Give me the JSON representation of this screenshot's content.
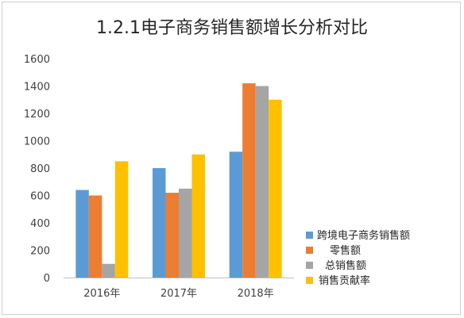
{
  "chart_data": {
    "type": "bar",
    "title": "1.2.1电子商务销售额增长分析对比",
    "xlabel": "",
    "ylabel": "",
    "categories": [
      "2016年",
      "2017年",
      "2018年"
    ],
    "ylim": [
      0,
      1600
    ],
    "yticks": [
      0,
      200,
      400,
      600,
      800,
      1000,
      1200,
      1400,
      1600
    ],
    "grid": false,
    "legend_position": "right",
    "series": [
      {
        "name": "跨境电子商务销售额",
        "color": "#5B9BD5",
        "values": [
          640,
          800,
          920
        ]
      },
      {
        "name": "零售额",
        "color": "#ED7D31",
        "values": [
          600,
          620,
          1420
        ]
      },
      {
        "name": "总销售额",
        "color": "#A5A5A5",
        "values": [
          100,
          650,
          1400
        ]
      },
      {
        "name": "销售贡献率",
        "color": "#FFC000",
        "values": [
          850,
          900,
          1300
        ]
      }
    ]
  }
}
